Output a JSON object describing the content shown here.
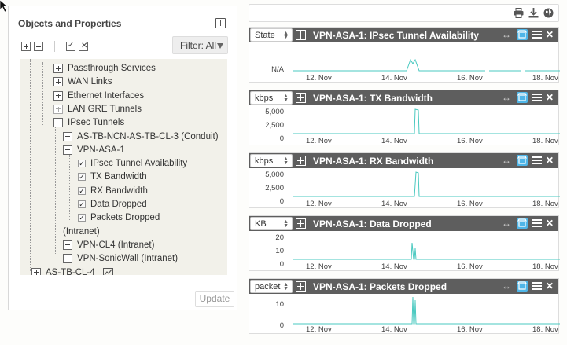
{
  "left_panel": {
    "title": "Objects and Properties",
    "filter_label": "Filter: All",
    "update_label": "Update",
    "tree": [
      {
        "label": "Passthrough Services",
        "level": 1,
        "kind": "plus"
      },
      {
        "label": "WAN Links",
        "level": 1,
        "kind": "plus"
      },
      {
        "label": "Ethernet Interfaces",
        "level": 1,
        "kind": "plus"
      },
      {
        "label": "LAN GRE Tunnels",
        "level": 1,
        "kind": "plus-dim"
      },
      {
        "label": "IPsec Tunnels",
        "level": 1,
        "kind": "minus"
      },
      {
        "label": "AS-TB-NCN-AS-TB-CL-3 (Conduit)",
        "level": 2,
        "kind": "plus"
      },
      {
        "label": "VPN-ASA-1",
        "level": 2,
        "kind": "minus"
      },
      {
        "label": "IPsec Tunnel Availability",
        "level": 3,
        "kind": "check"
      },
      {
        "label": "TX Bandwidth",
        "level": 3,
        "kind": "check"
      },
      {
        "label": "RX Bandwidth",
        "level": 3,
        "kind": "check"
      },
      {
        "label": "Data Dropped",
        "level": 3,
        "kind": "check"
      },
      {
        "label": "Packets Dropped",
        "level": 3,
        "kind": "check"
      },
      {
        "label": "(Intranet)",
        "level": 2,
        "kind": "none"
      },
      {
        "label": "VPN-CL4 (Intranet)",
        "level": 2,
        "kind": "plus"
      },
      {
        "label": "VPN-SonicWall (Intranet)",
        "level": 2,
        "kind": "plus"
      },
      {
        "label": "AS-TB-CL-4",
        "level": 0,
        "kind": "plus-chart"
      }
    ]
  },
  "top_bar": {
    "icons": [
      "print-icon",
      "download-icon",
      "globe-icon"
    ]
  },
  "x_ticks": [
    "12. Nov",
    "14. Nov",
    "16. Nov",
    "18. Nov"
  ],
  "widgets": [
    {
      "unit": "State",
      "title": "VPN-ASA-1: IPsec Tunnel Availability",
      "yticks": [
        "N/A"
      ]
    },
    {
      "unit": "kbps",
      "title": "VPN-ASA-1: TX Bandwidth",
      "yticks": [
        "5,000",
        "2,500",
        "0"
      ]
    },
    {
      "unit": "kbps",
      "title": "VPN-ASA-1: RX Bandwidth",
      "yticks": [
        "5,000",
        "2,500",
        "0"
      ]
    },
    {
      "unit": "KB",
      "title": "VPN-ASA-1: Data Dropped",
      "yticks": [
        "20",
        "10",
        "0"
      ]
    },
    {
      "unit": "packet",
      "title": "VPN-ASA-1: Packets Dropped",
      "yticks": [
        "10",
        "0"
      ]
    }
  ],
  "colors": {
    "line": "#4ac9c0",
    "header": "#5e5e5e",
    "accent": "#4fb6e8"
  }
}
